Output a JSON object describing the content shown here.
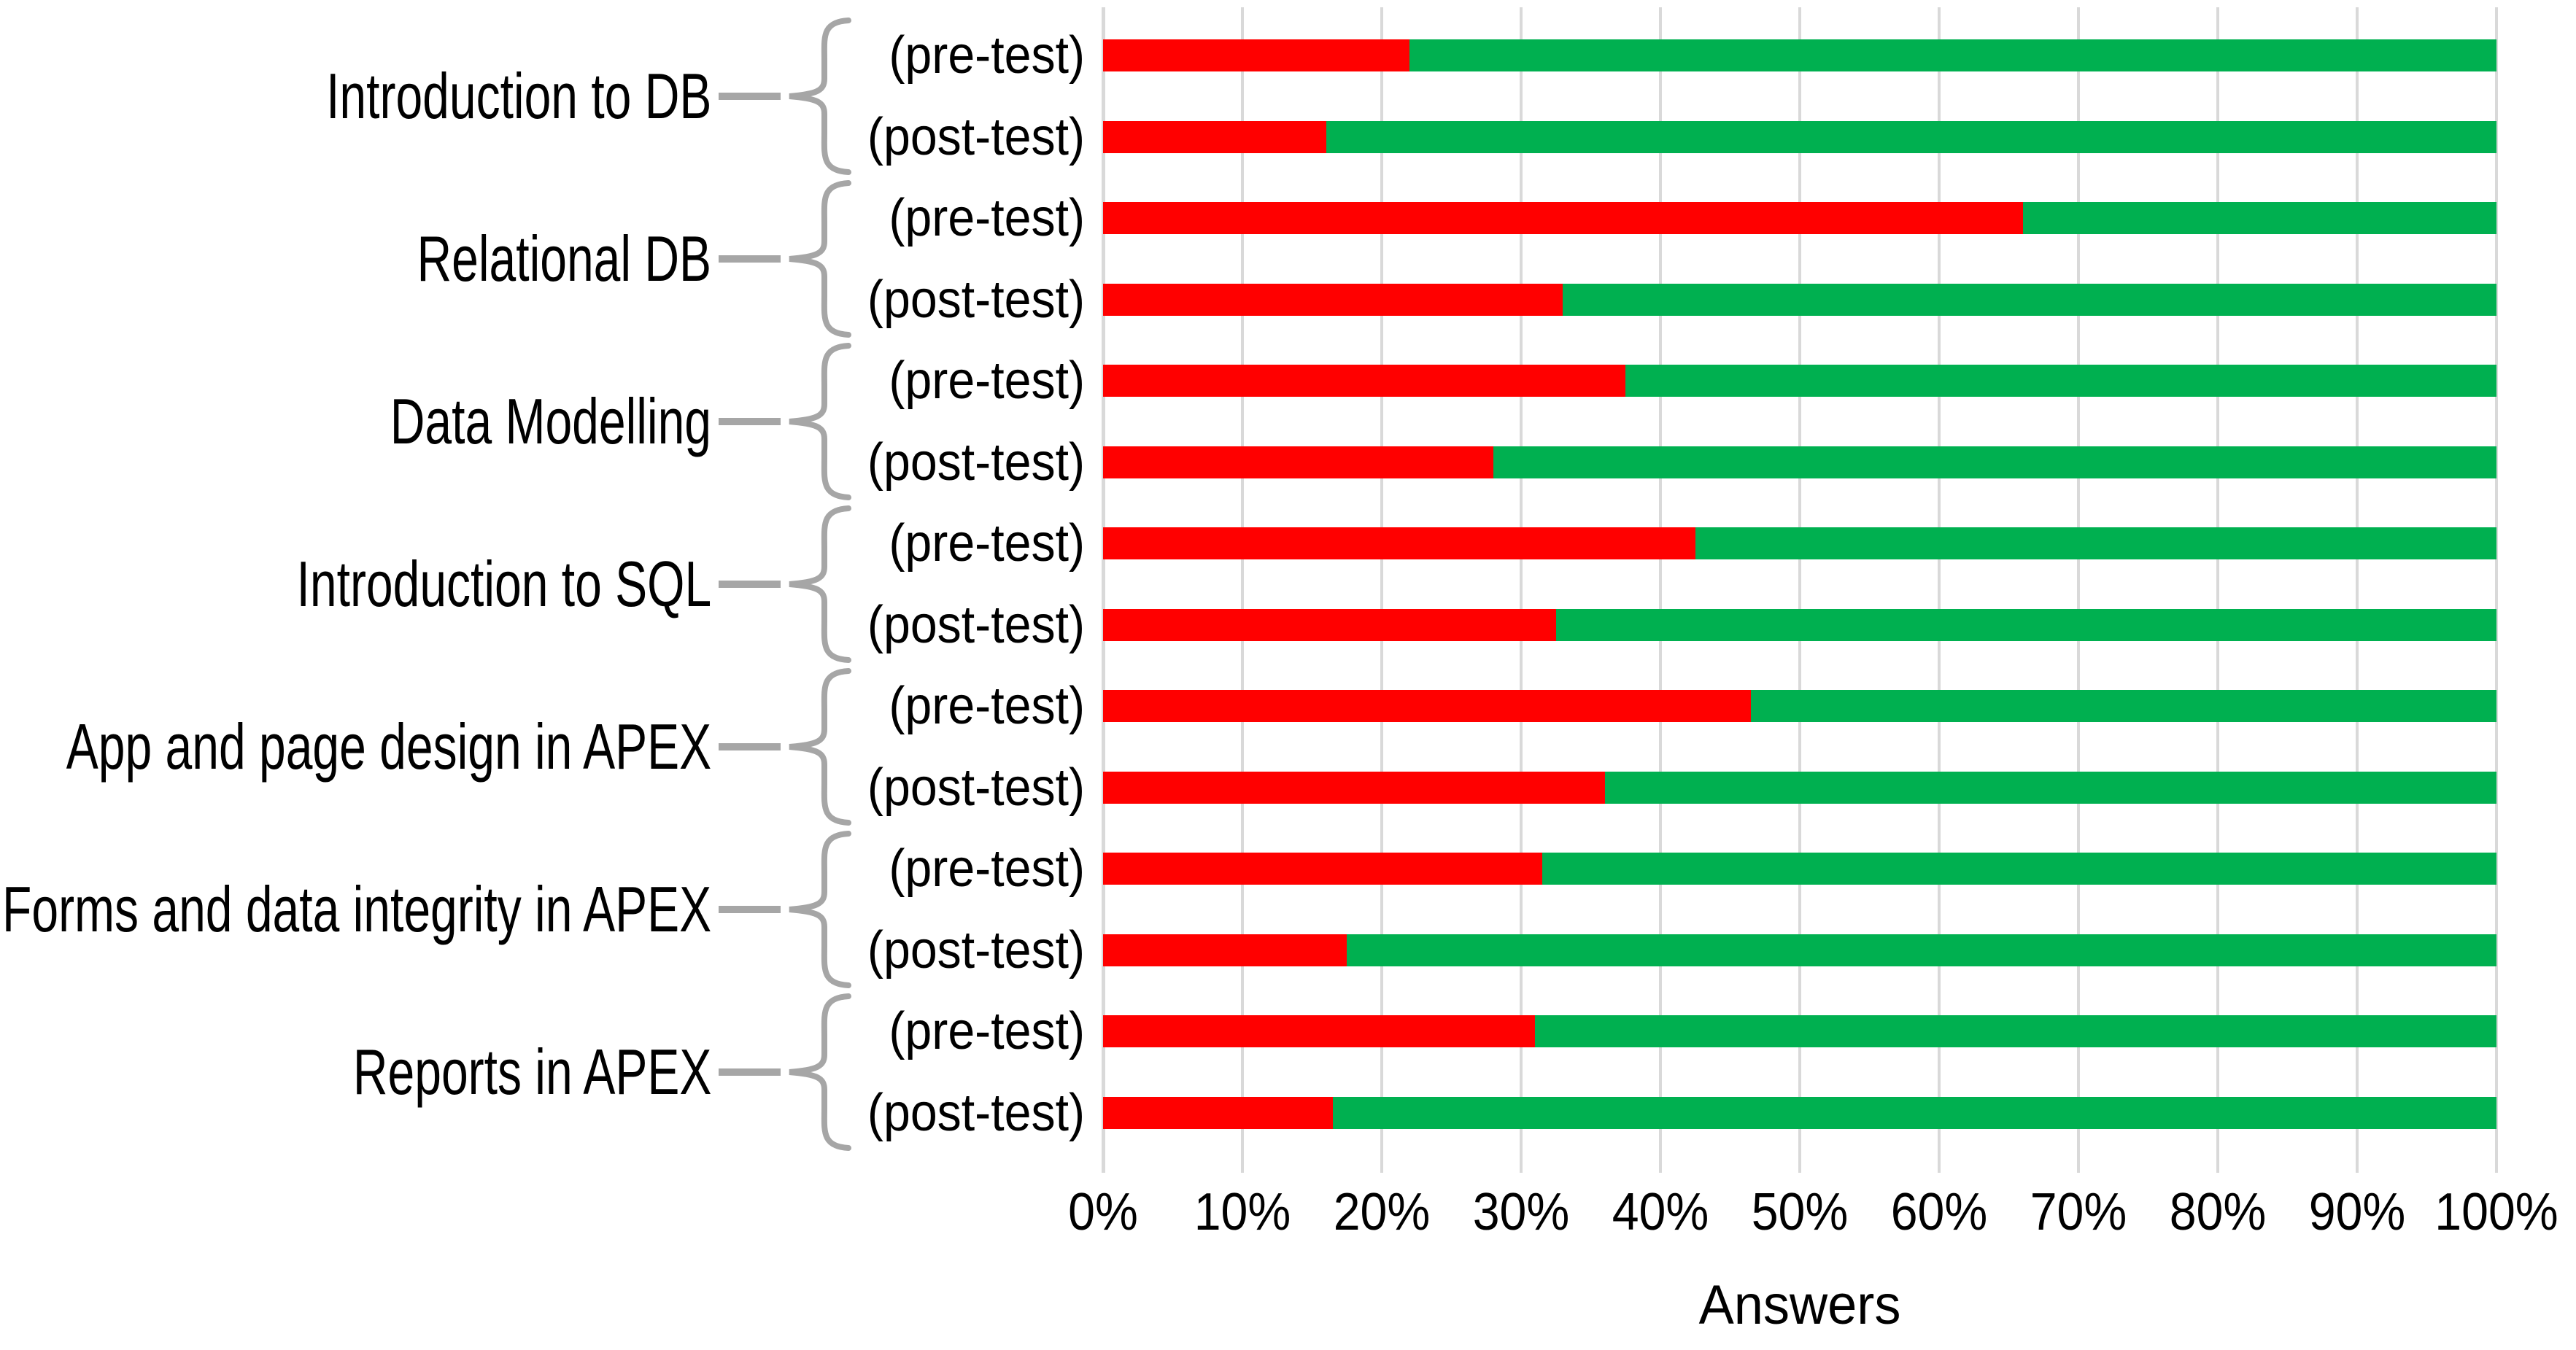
{
  "chart_data": {
    "type": "bar",
    "orientation": "horizontal",
    "stacked": true,
    "title": "",
    "xlabel": "Answers",
    "ylabel": "",
    "xlim": [
      0,
      100
    ],
    "grid": true,
    "legend": "none",
    "x_ticks": [
      "0%",
      "10%",
      "20%",
      "30%",
      "40%",
      "50%",
      "60%",
      "70%",
      "80%",
      "90%",
      "100%"
    ],
    "colors": {
      "red_segment": "#FF0000",
      "green_segment": "#00B050",
      "gridline": "#D9D9D9",
      "axis_line": "#D9D9D9",
      "brace": "#A6A6A6",
      "text": "#000000"
    },
    "row_label_pre": "(pre-test)",
    "row_label_post": "(post-test)",
    "groups": [
      {
        "category": "Introduction to DB",
        "bars": [
          {
            "label": "(pre-test)",
            "red_pct": 22,
            "green_pct": 78
          },
          {
            "label": "(post-test)",
            "red_pct": 16,
            "green_pct": 84
          }
        ]
      },
      {
        "category": "Relational DB",
        "bars": [
          {
            "label": "(pre-test)",
            "red_pct": 66,
            "green_pct": 34
          },
          {
            "label": "(post-test)",
            "red_pct": 33,
            "green_pct": 67
          }
        ]
      },
      {
        "category": "Data Modelling",
        "bars": [
          {
            "label": "(pre-test)",
            "red_pct": 37.5,
            "green_pct": 62.5
          },
          {
            "label": "(post-test)",
            "red_pct": 28,
            "green_pct": 72
          }
        ]
      },
      {
        "category": "Introduction to SQL",
        "bars": [
          {
            "label": "(pre-test)",
            "red_pct": 42.5,
            "green_pct": 57.5
          },
          {
            "label": "(post-test)",
            "red_pct": 32.5,
            "green_pct": 67.5
          }
        ]
      },
      {
        "category": "App and page design in APEX",
        "bars": [
          {
            "label": "(pre-test)",
            "red_pct": 46.5,
            "green_pct": 53.5
          },
          {
            "label": "(post-test)",
            "red_pct": 36,
            "green_pct": 64
          }
        ]
      },
      {
        "category": "Forms and data integrity in APEX",
        "bars": [
          {
            "label": "(pre-test)",
            "red_pct": 31.5,
            "green_pct": 68.5
          },
          {
            "label": "(post-test)",
            "red_pct": 17.5,
            "green_pct": 82.5
          }
        ]
      },
      {
        "category": "Reports in APEX",
        "bars": [
          {
            "label": "(pre-test)",
            "red_pct": 31,
            "green_pct": 69
          },
          {
            "label": "(post-test)",
            "red_pct": 16.5,
            "green_pct": 83.5
          }
        ]
      }
    ]
  }
}
